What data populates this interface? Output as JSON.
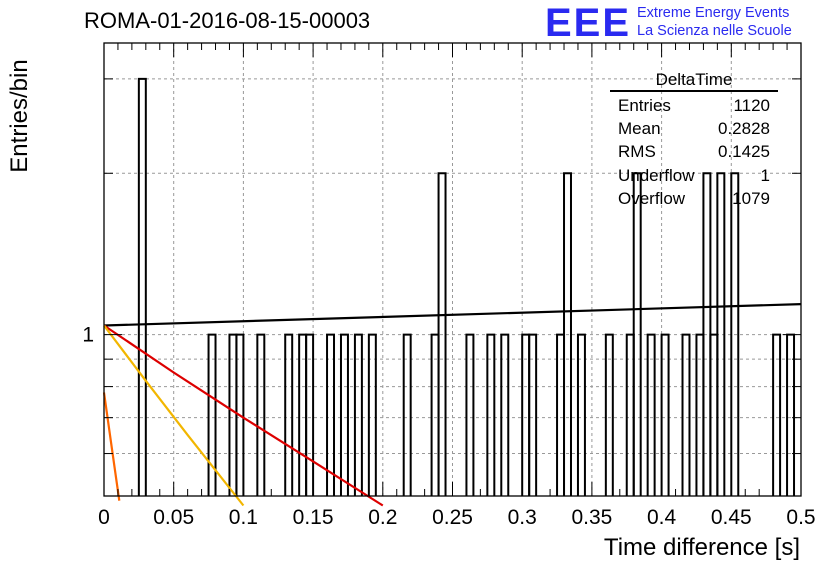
{
  "title": "ROMA-01-2016-08-15-00003",
  "logo": {
    "big": "EEE",
    "line1": "Extreme Energy Events",
    "line2": "La Scienza nelle Scuole"
  },
  "stats": {
    "name": "DeltaTime",
    "rows": [
      {
        "label": "Entries",
        "value": "1120"
      },
      {
        "label": "Mean",
        "value": "0.2828"
      },
      {
        "label": "RMS",
        "value": "0.1425"
      },
      {
        "label": "Underflow",
        "value": "1"
      },
      {
        "label": "Overflow",
        "value": "1079"
      }
    ]
  },
  "colors": {
    "histogram": "#000000",
    "fit_black": "#000000",
    "fit_red": "#dd0000",
    "fit_yellow": "#f2b600",
    "fit_orange": "#ff6600",
    "grid": "#999999",
    "logo": "#2a2af0"
  },
  "chart_data": {
    "type": "histogram",
    "title": "ROMA-01-2016-08-15-00003",
    "xlabel": "Time difference [s]",
    "ylabel": "Entries/bin",
    "xlim": [
      0,
      0.5
    ],
    "ylim": [
      0.5,
      3.5
    ],
    "yscale": "log",
    "grid": true,
    "x_ticks": [
      "0",
      "0.05",
      "0.1",
      "0.15",
      "0.2",
      "0.25",
      "0.3",
      "0.35",
      "0.4",
      "0.45",
      "0.5"
    ],
    "y_ticks": [
      "1"
    ],
    "bin_width": 0.005,
    "bins": [
      {
        "x": 0.025,
        "count": 3
      },
      {
        "x": 0.075,
        "count": 1
      },
      {
        "x": 0.09,
        "count": 1
      },
      {
        "x": 0.095,
        "count": 1
      },
      {
        "x": 0.11,
        "count": 1
      },
      {
        "x": 0.13,
        "count": 1
      },
      {
        "x": 0.14,
        "count": 1
      },
      {
        "x": 0.145,
        "count": 1
      },
      {
        "x": 0.16,
        "count": 1
      },
      {
        "x": 0.17,
        "count": 1
      },
      {
        "x": 0.18,
        "count": 1
      },
      {
        "x": 0.19,
        "count": 1
      },
      {
        "x": 0.215,
        "count": 1
      },
      {
        "x": 0.235,
        "count": 1
      },
      {
        "x": 0.24,
        "count": 2
      },
      {
        "x": 0.26,
        "count": 1
      },
      {
        "x": 0.275,
        "count": 1
      },
      {
        "x": 0.285,
        "count": 1
      },
      {
        "x": 0.3,
        "count": 1
      },
      {
        "x": 0.305,
        "count": 1
      },
      {
        "x": 0.325,
        "count": 1
      },
      {
        "x": 0.33,
        "count": 2
      },
      {
        "x": 0.34,
        "count": 1
      },
      {
        "x": 0.36,
        "count": 1
      },
      {
        "x": 0.375,
        "count": 1
      },
      {
        "x": 0.38,
        "count": 2
      },
      {
        "x": 0.39,
        "count": 1
      },
      {
        "x": 0.4,
        "count": 1
      },
      {
        "x": 0.415,
        "count": 1
      },
      {
        "x": 0.425,
        "count": 1
      },
      {
        "x": 0.43,
        "count": 2
      },
      {
        "x": 0.435,
        "count": 1
      },
      {
        "x": 0.44,
        "count": 2
      },
      {
        "x": 0.45,
        "count": 2
      },
      {
        "x": 0.48,
        "count": 1
      },
      {
        "x": 0.49,
        "count": 1
      }
    ],
    "fits": [
      {
        "color": "#000000",
        "points": [
          [
            0,
            1.04
          ],
          [
            0.5,
            1.14
          ]
        ]
      },
      {
        "color": "#dd0000",
        "points": [
          [
            0,
            1.04
          ],
          [
            0.05,
            0.85
          ],
          [
            0.1,
            0.7
          ],
          [
            0.15,
            0.58
          ],
          [
            0.2,
            0.48
          ]
        ]
      },
      {
        "color": "#f2b600",
        "points": [
          [
            0,
            1.04
          ],
          [
            0.03,
            0.82
          ],
          [
            0.06,
            0.65
          ],
          [
            0.1,
            0.48
          ]
        ]
      },
      {
        "color": "#ff6600",
        "points": [
          [
            0,
            0.78
          ],
          [
            0.005,
            0.63
          ],
          [
            0.011,
            0.49
          ]
        ]
      }
    ]
  }
}
